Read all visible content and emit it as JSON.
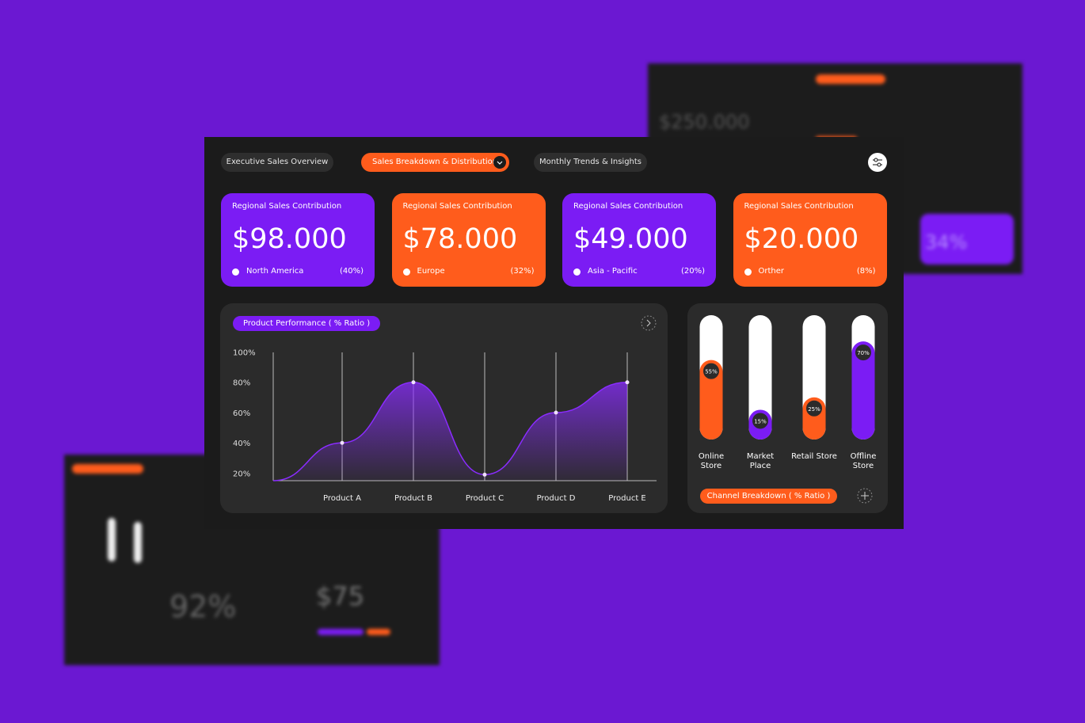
{
  "tabs": [
    "Executive Sales Overview",
    "Sales Breakdown & Distribution",
    "Monthly Trends & Insights"
  ],
  "cards": [
    {
      "title": "Regional Sales Contribution",
      "value": "$98.000",
      "region": "North America",
      "share": "(40%)",
      "color": "#7b1cf4"
    },
    {
      "title": "Regional Sales Contribution",
      "value": "$78.000",
      "region": "Europe",
      "share": "(32%)",
      "color": "#ff5c1c"
    },
    {
      "title": "Regional Sales Contribution",
      "value": "$49.000",
      "region": "Asia - Pacific",
      "share": "(20%)",
      "color": "#7b1cf4"
    },
    {
      "title": "Regional Sales Contribution",
      "value": "$20.000",
      "region": "Orther",
      "share": "(8%)",
      "color": "#ff5c1c"
    }
  ],
  "performance": {
    "title": "Product Performance ( % Ratio )",
    "categories": [
      "Product A",
      "Product B",
      "Product C",
      "Product D",
      "Product E"
    ],
    "values": [
      40,
      80,
      19,
      60,
      80
    ],
    "ylim": [
      15,
      100
    ],
    "yticks": [
      {
        "value": 100,
        "label": "100%"
      },
      {
        "value": 80,
        "label": "80%"
      },
      {
        "value": 60,
        "label": "60%"
      },
      {
        "value": 40,
        "label": "40%"
      },
      {
        "value": 20,
        "label": "20%"
      }
    ],
    "color": "#8a2cff"
  },
  "channel": {
    "title": "Channel Breakdown ( % Ratio )",
    "ylim": [
      0,
      100
    ],
    "bars": [
      {
        "name": "Online Store",
        "value": 55,
        "value_label": "55%",
        "color": "#ff5c1c"
      },
      {
        "name": "Market Place",
        "value": 15,
        "value_label": "15%",
        "color": "#7b1cf4"
      },
      {
        "name": "Retail Store",
        "value": 25,
        "value_label": "25%",
        "color": "#ff5c1c"
      },
      {
        "name": "Offline Store",
        "value": 70,
        "value_label": "70%",
        "color": "#7b1cf4"
      }
    ]
  },
  "background_panels": {
    "top_value": "$250.000",
    "top_percent": "34%",
    "bottom_percent": "92%",
    "bottom_value": "$75"
  }
}
